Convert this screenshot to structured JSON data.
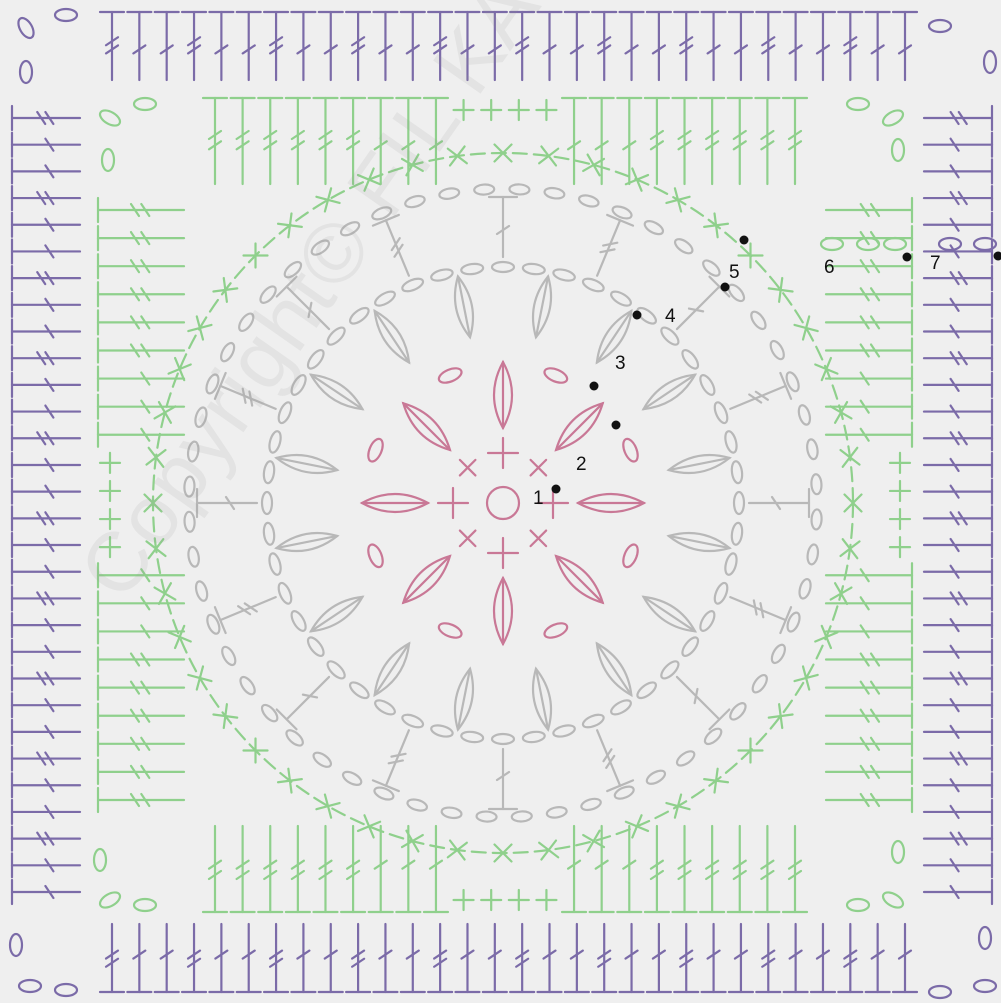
{
  "diagram": {
    "colors": {
      "background": "#efefef",
      "center_rounds": "#c97896",
      "middle_rounds": "#b8b8b8",
      "green_rounds": "#8fd08c",
      "purple_rounds": "#7b6ba8",
      "markers": "#111111"
    },
    "round_labels": [
      "1",
      "2",
      "3",
      "4",
      "5",
      "6",
      "7"
    ],
    "watermark": "Copyright© FIL KATIA S.A.",
    "symbols": [
      "chain-oval",
      "single-crochet-cross",
      "double-crochet",
      "treble-crochet",
      "slip-stitch-dot",
      "magic-ring",
      "leaf-cluster"
    ]
  }
}
